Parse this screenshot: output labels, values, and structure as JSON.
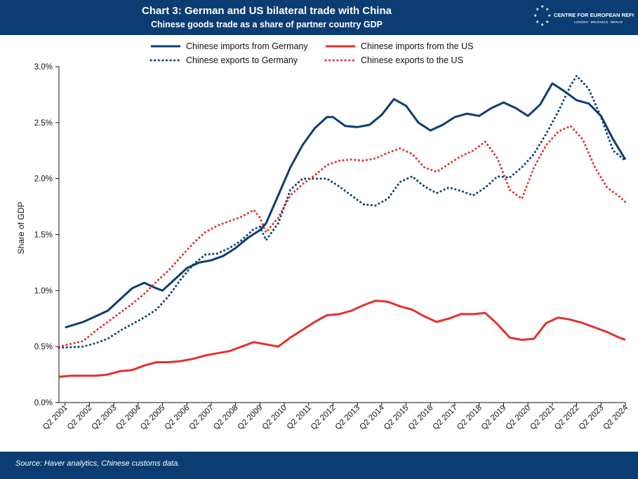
{
  "header": {
    "title": "Chart 3: German and US bilateral trade with China",
    "subtitle": "Chinese goods trade as a share of partner country GDP",
    "logo_name": "CENTRE FOR EUROPEAN REFORM",
    "logo_cities": "LONDON · BRUSSELS · BERLIN"
  },
  "footer": {
    "source": "Source: Haver analytics, Chinese customs data."
  },
  "colors": {
    "navy": "#0b3d73",
    "red": "#e3312d",
    "header_bg": "#0b3d73"
  },
  "chart_data": {
    "type": "line",
    "title": "Chart 3: German and US bilateral trade with China",
    "subtitle": "Chinese goods trade as a share of partner country GDP",
    "xlabel": "",
    "ylabel": "Share of GDP",
    "ylim": [
      0,
      3
    ],
    "yticks": [
      "0.0%",
      "0.5%",
      "1.0%",
      "1.5%",
      "2.0%",
      "2.5%",
      "3.0%"
    ],
    "xticks": [
      "Q2 2001",
      "Q2 2002",
      "Q2 2003",
      "Q2 2004",
      "Q2 2005",
      "Q2 2006",
      "Q2 2007",
      "Q2 2008",
      "Q2 2009",
      "Q2 2010",
      "Q2 2011",
      "Q2 2012",
      "Q2 2013",
      "Q2 2014",
      "Q2 2015",
      "Q2 2016",
      "Q2 2017",
      "Q2 2018",
      "Q2 2019",
      "Q2 2020",
      "Q2 2021",
      "Q2 2022",
      "Q2 2023",
      "Q2 2024"
    ],
    "x_start": "2001 Q1",
    "x_end": "2024 Q2",
    "legend_position": "top",
    "grid": false,
    "series": [
      {
        "name": "Chinese imports from Germany",
        "color": "#0b3d73",
        "style": "solid",
        "x": [
          "2001 Q2",
          "2002 Q1",
          "2002 Q3",
          "2003 Q1",
          "2003 Q3",
          "2004 Q1",
          "2004 Q3",
          "2005 Q1",
          "2005 Q2",
          "2005 Q4",
          "2006 Q2",
          "2006 Q4",
          "2007 Q2",
          "2007 Q4",
          "2008 Q2",
          "2008 Q4",
          "2009 Q2",
          "2009 Q3",
          "2010 Q1",
          "2010 Q3",
          "2011 Q1",
          "2011 Q3",
          "2012 Q1",
          "2012 Q2",
          "2012 Q4",
          "2013 Q2",
          "2013 Q4",
          "2014 Q2",
          "2014 Q4",
          "2015 Q2",
          "2015 Q4",
          "2016 Q2",
          "2016 Q4",
          "2017 Q2",
          "2017 Q4",
          "2018 Q2",
          "2018 Q4",
          "2019 Q2",
          "2019 Q4",
          "2020 Q2",
          "2020 Q4",
          "2021 Q2",
          "2021 Q4",
          "2022 Q2",
          "2022 Q4",
          "2023 Q2",
          "2023 Q4",
          "2024 Q2"
        ],
        "y": [
          0.67,
          0.72,
          0.77,
          0.82,
          0.92,
          1.02,
          1.07,
          1.02,
          1.0,
          1.1,
          1.2,
          1.25,
          1.27,
          1.31,
          1.38,
          1.47,
          1.54,
          1.6,
          1.85,
          2.1,
          2.3,
          2.45,
          2.55,
          2.55,
          2.47,
          2.46,
          2.48,
          2.57,
          2.71,
          2.65,
          2.5,
          2.43,
          2.48,
          2.55,
          2.58,
          2.56,
          2.63,
          2.68,
          2.63,
          2.56,
          2.66,
          2.85,
          2.78,
          2.7,
          2.67,
          2.56,
          2.35,
          2.17
        ]
      },
      {
        "name": "Chinese exports to Germany",
        "color": "#0b3d73",
        "style": "dotted",
        "x": [
          "2001 Q1",
          "2002 Q1",
          "2002 Q3",
          "2003 Q1",
          "2003 Q3",
          "2004 Q1",
          "2004 Q3",
          "2005 Q1",
          "2005 Q3",
          "2006 Q1",
          "2006 Q3",
          "2007 Q1",
          "2007 Q3",
          "2008 Q1",
          "2008 Q3",
          "2009 Q1",
          "2009 Q2",
          "2009 Q3",
          "2010 Q1",
          "2010 Q3",
          "2011 Q1",
          "2011 Q3",
          "2012 Q1",
          "2012 Q3",
          "2013 Q1",
          "2013 Q3",
          "2014 Q1",
          "2014 Q3",
          "2015 Q1",
          "2015 Q3",
          "2016 Q1",
          "2016 Q3",
          "2017 Q1",
          "2017 Q3",
          "2018 Q1",
          "2018 Q3",
          "2019 Q1",
          "2019 Q3",
          "2020 Q1",
          "2020 Q3",
          "2021 Q1",
          "2021 Q3",
          "2022 Q1",
          "2022 Q2",
          "2022 Q4",
          "2023 Q2",
          "2023 Q4",
          "2024 Q2"
        ],
        "y": [
          0.49,
          0.5,
          0.53,
          0.57,
          0.64,
          0.7,
          0.76,
          0.83,
          0.95,
          1.1,
          1.23,
          1.32,
          1.33,
          1.38,
          1.45,
          1.55,
          1.57,
          1.45,
          1.6,
          1.9,
          2.0,
          2.0,
          2.0,
          1.93,
          1.85,
          1.77,
          1.76,
          1.82,
          1.97,
          2.02,
          1.93,
          1.87,
          1.92,
          1.89,
          1.85,
          1.92,
          2.02,
          2.01,
          2.1,
          2.22,
          2.4,
          2.6,
          2.83,
          2.92,
          2.8,
          2.55,
          2.25,
          2.16
        ]
      },
      {
        "name": "Chinese imports from the US",
        "color": "#e3312d",
        "style": "solid",
        "x": [
          "2001 Q1",
          "2001 Q3",
          "2002 Q1",
          "2002 Q3",
          "2003 Q1",
          "2003 Q3",
          "2004 Q1",
          "2004 Q3",
          "2005 Q1",
          "2005 Q3",
          "2006 Q1",
          "2006 Q3",
          "2007 Q1",
          "2007 Q3",
          "2008 Q1",
          "2008 Q3",
          "2009 Q1",
          "2009 Q3",
          "2010 Q1",
          "2010 Q3",
          "2011 Q1",
          "2011 Q3",
          "2012 Q1",
          "2012 Q3",
          "2013 Q1",
          "2013 Q3",
          "2014 Q1",
          "2014 Q3",
          "2015 Q1",
          "2015 Q3",
          "2016 Q1",
          "2016 Q3",
          "2017 Q1",
          "2017 Q3",
          "2018 Q1",
          "2018 Q3",
          "2019 Q1",
          "2019 Q3",
          "2020 Q1",
          "2020 Q3",
          "2021 Q1",
          "2021 Q3",
          "2022 Q1",
          "2022 Q3",
          "2023 Q1",
          "2023 Q3",
          "2024 Q1",
          "2024 Q2"
        ],
        "y": [
          0.23,
          0.24,
          0.24,
          0.24,
          0.25,
          0.28,
          0.29,
          0.33,
          0.36,
          0.36,
          0.37,
          0.39,
          0.42,
          0.44,
          0.46,
          0.5,
          0.54,
          0.52,
          0.5,
          0.58,
          0.65,
          0.72,
          0.78,
          0.79,
          0.82,
          0.87,
          0.91,
          0.9,
          0.86,
          0.83,
          0.77,
          0.72,
          0.75,
          0.79,
          0.79,
          0.8,
          0.7,
          0.58,
          0.56,
          0.57,
          0.71,
          0.76,
          0.74,
          0.71,
          0.67,
          0.63,
          0.58,
          0.56
        ]
      },
      {
        "name": "Chinese exports to the US",
        "color": "#e3312d",
        "style": "dotted",
        "x": [
          "2001 Q1",
          "2002 Q1",
          "2002 Q3",
          "2003 Q1",
          "2003 Q3",
          "2004 Q1",
          "2004 Q3",
          "2005 Q1",
          "2005 Q3",
          "2006 Q1",
          "2006 Q3",
          "2007 Q1",
          "2007 Q3",
          "2008 Q1",
          "2008 Q3",
          "2009 Q1",
          "2009 Q2",
          "2009 Q3",
          "2010 Q1",
          "2010 Q3",
          "2011 Q1",
          "2011 Q3",
          "2012 Q1",
          "2012 Q3",
          "2013 Q1",
          "2013 Q3",
          "2014 Q1",
          "2014 Q3",
          "2015 Q1",
          "2015 Q3",
          "2016 Q1",
          "2016 Q3",
          "2017 Q1",
          "2017 Q3",
          "2018 Q1",
          "2018 Q3",
          "2019 Q1",
          "2019 Q3",
          "2020 Q1",
          "2020 Q3",
          "2021 Q1",
          "2021 Q3",
          "2022 Q1",
          "2022 Q3",
          "2023 Q1",
          "2023 Q3",
          "2024 Q1",
          "2024 Q2"
        ],
        "y": [
          0.5,
          0.55,
          0.64,
          0.72,
          0.8,
          0.88,
          0.97,
          1.08,
          1.18,
          1.3,
          1.42,
          1.52,
          1.58,
          1.62,
          1.66,
          1.72,
          1.65,
          1.52,
          1.65,
          1.85,
          1.95,
          2.03,
          2.12,
          2.16,
          2.17,
          2.16,
          2.18,
          2.23,
          2.27,
          2.22,
          2.1,
          2.06,
          2.13,
          2.2,
          2.25,
          2.33,
          2.18,
          1.9,
          1.82,
          2.1,
          2.3,
          2.42,
          2.47,
          2.35,
          2.1,
          1.92,
          1.84,
          1.79
        ]
      }
    ]
  }
}
